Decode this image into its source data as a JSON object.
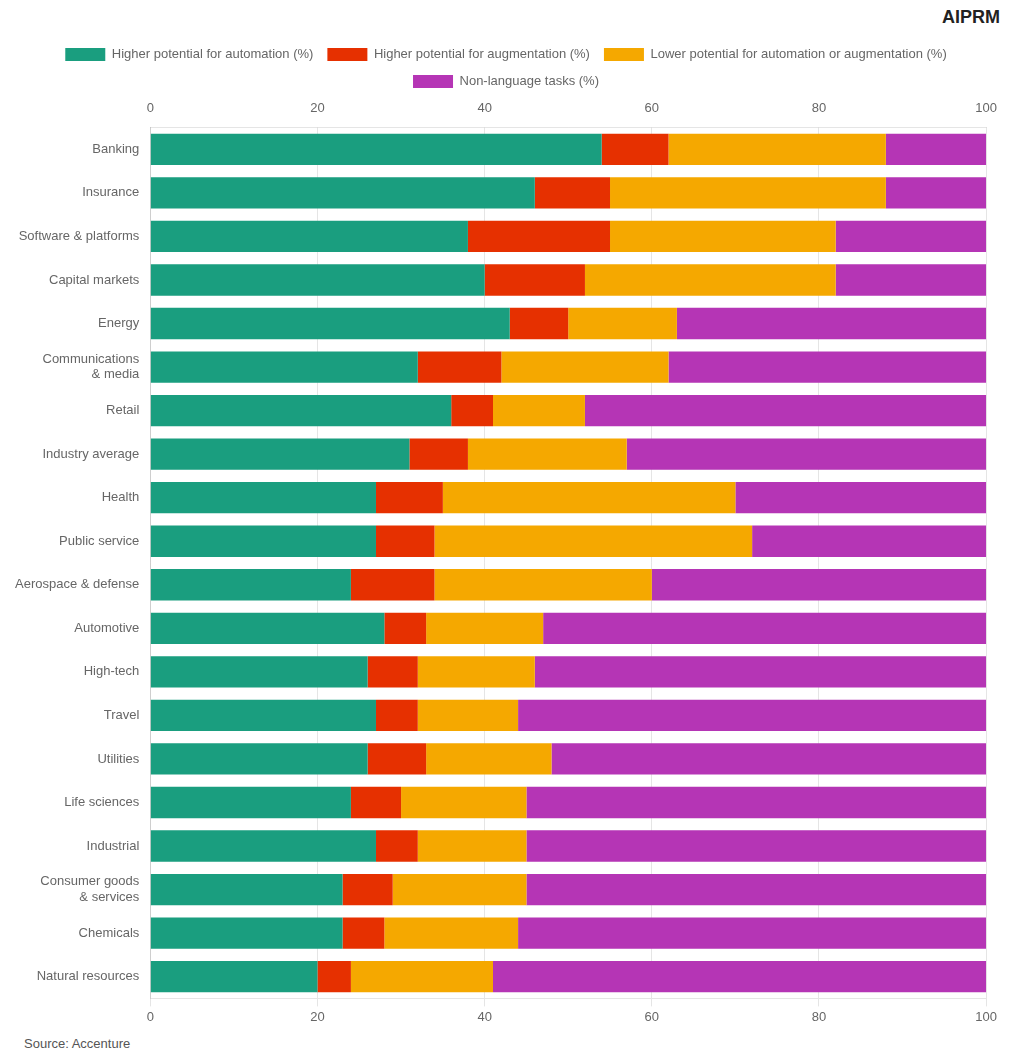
{
  "chart_data": {
    "type": "bar",
    "orientation": "horizontal",
    "stacked": true,
    "categories": [
      "Banking",
      "Insurance",
      "Software & platforms",
      "Capital markets",
      "Energy",
      "Communications\n& media",
      "Retail",
      "Industry average",
      "Health",
      "Public service",
      "Aerospace & defense",
      "Automotive",
      "High-tech",
      "Travel",
      "Utilities",
      "Life sciences",
      "Industrial",
      "Consumer goods\n& services",
      "Chemicals",
      "Natural resources"
    ],
    "series": [
      {
        "name": "Higher potential for automation (%)",
        "color": "#1a9e7f",
        "values": [
          54,
          46,
          38,
          40,
          43,
          32,
          36,
          31,
          27,
          27,
          24,
          28,
          26,
          27,
          26,
          24,
          27,
          23,
          23,
          20
        ]
      },
      {
        "name": "Higher potential for augmentation (%)",
        "color": "#e63000",
        "values": [
          8,
          9,
          17,
          12,
          7,
          10,
          5,
          7,
          8,
          7,
          10,
          5,
          6,
          5,
          7,
          6,
          5,
          6,
          5,
          4
        ]
      },
      {
        "name": "Lower potential for automation or augmentation (%)",
        "color": "#f5a800",
        "values": [
          26,
          33,
          27,
          30,
          13,
          20,
          11,
          19,
          35,
          38,
          26,
          14,
          14,
          12,
          15,
          15,
          13,
          16,
          16,
          17
        ]
      },
      {
        "name": "Non-language tasks (%)",
        "color": "#b535b5",
        "values": [
          12,
          12,
          18,
          18,
          37,
          38,
          48,
          43,
          30,
          28,
          40,
          53,
          54,
          56,
          52,
          55,
          55,
          55,
          56,
          59
        ]
      }
    ],
    "xlim": [
      0,
      100
    ],
    "xticks": [
      0,
      20,
      40,
      60,
      80,
      100
    ],
    "grid": true,
    "legend": "top",
    "annotations": [
      "AIPRM",
      "Source: Accenture"
    ]
  }
}
